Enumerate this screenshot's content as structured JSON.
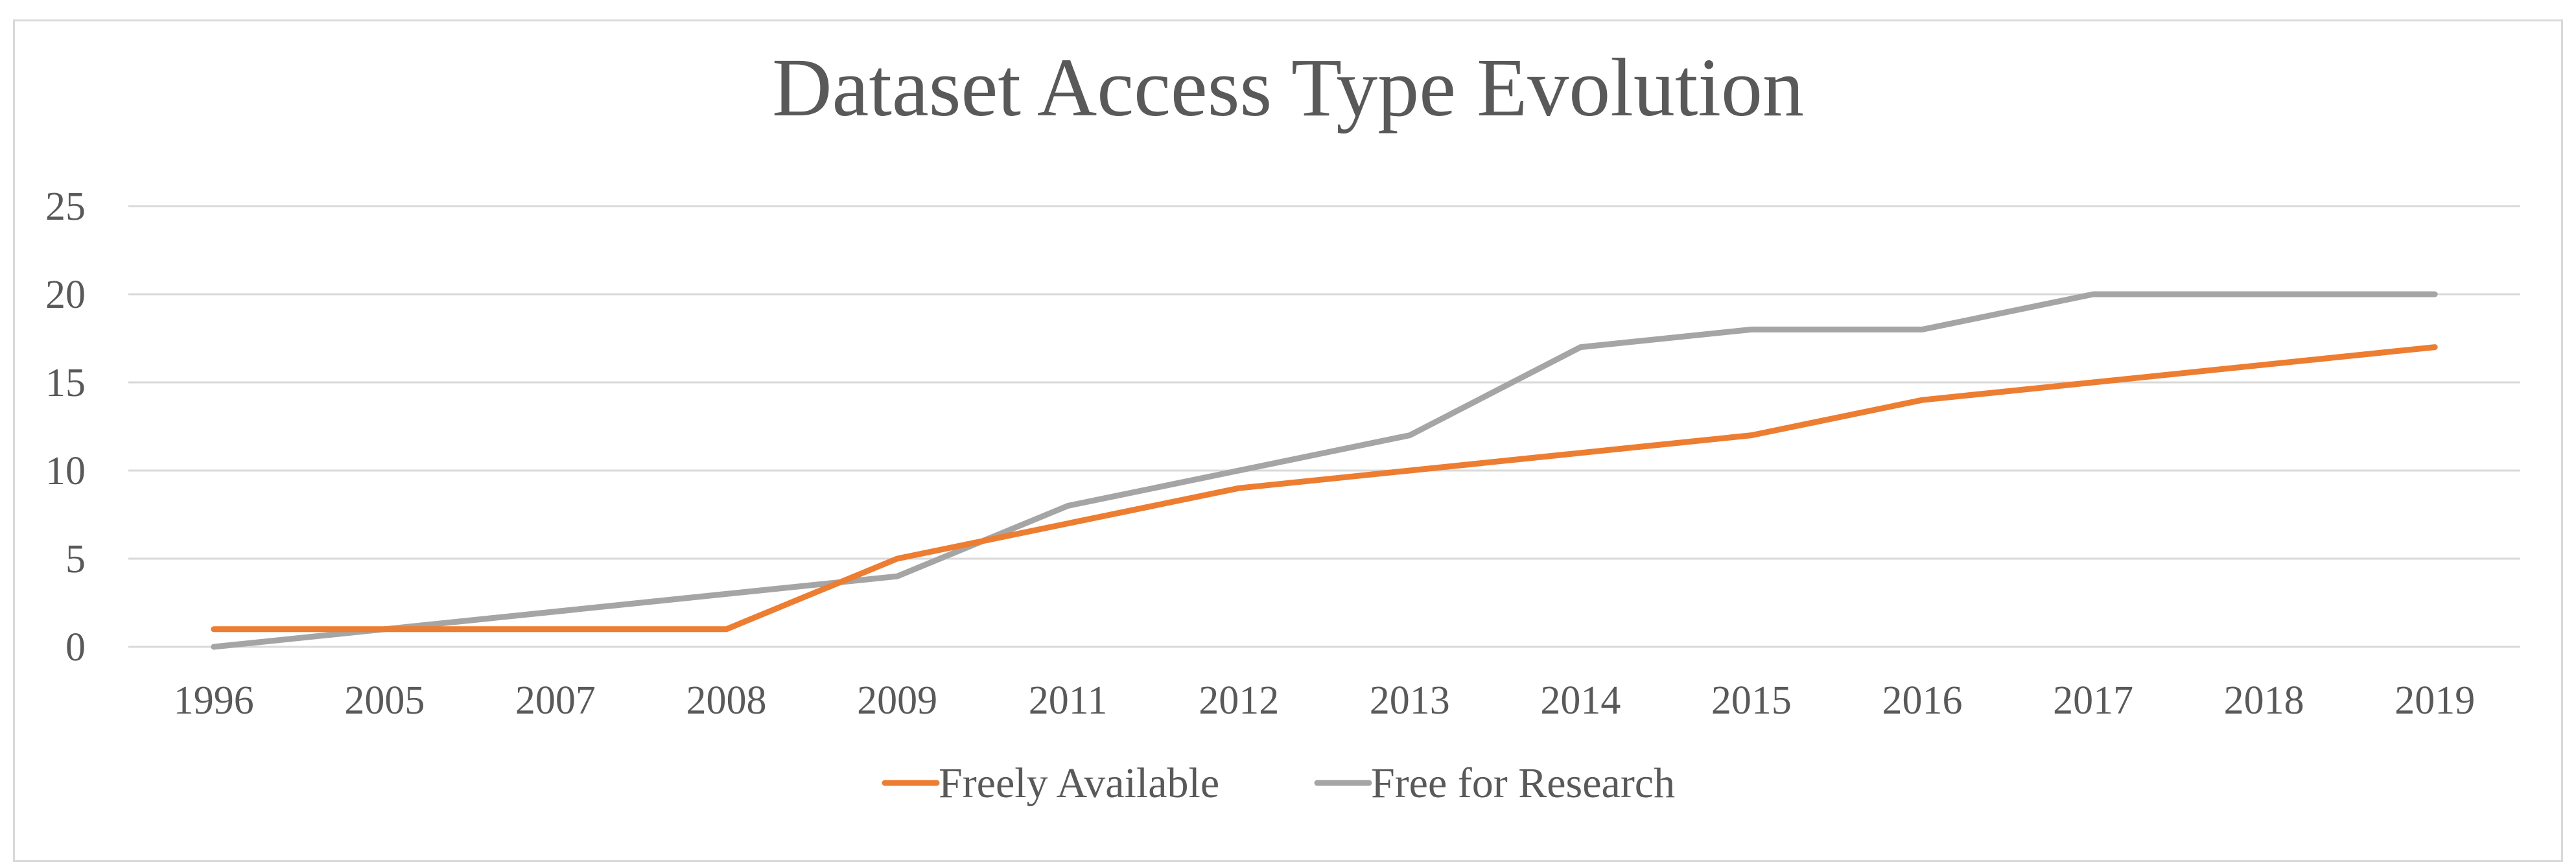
{
  "chart_data": {
    "type": "line",
    "title": "Dataset Access Type Evolution",
    "xlabel": "",
    "ylabel": "",
    "categories": [
      "1996",
      "2005",
      "2007",
      "2008",
      "2009",
      "2011",
      "2012",
      "2013",
      "2014",
      "2015",
      "2016",
      "2017",
      "2018",
      "2019"
    ],
    "ylim": [
      0,
      25
    ],
    "yticks": [
      "0",
      "5",
      "10",
      "15",
      "20",
      "25"
    ],
    "grid": true,
    "legend_position": "bottom",
    "series": [
      {
        "name": "Freely Available",
        "color": "#ed7d31",
        "values": [
          1,
          1,
          1,
          1,
          5,
          7,
          9,
          10,
          11,
          12,
          14,
          15,
          16,
          17
        ]
      },
      {
        "name": "Free for Research",
        "color": "#a5a5a5",
        "values": [
          0,
          1,
          2,
          3,
          4,
          8,
          10,
          12,
          17,
          18,
          18,
          20,
          20,
          20
        ]
      }
    ]
  }
}
